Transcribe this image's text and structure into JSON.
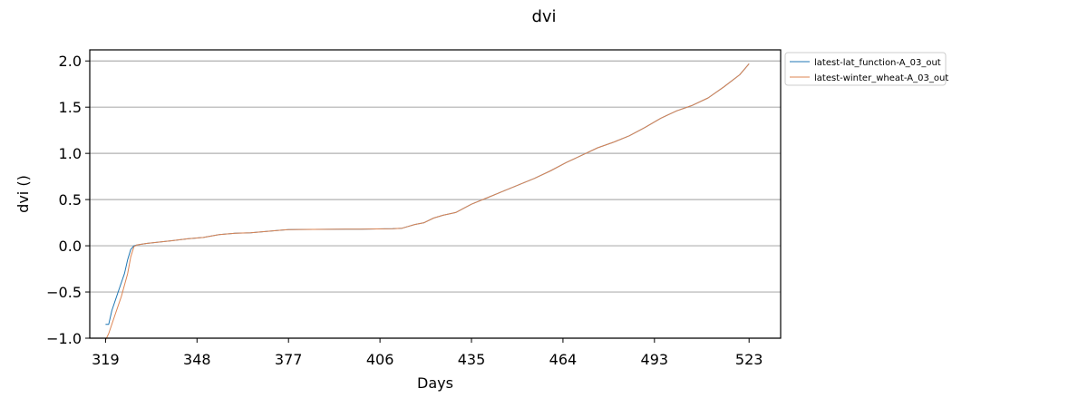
{
  "chart_data": {
    "type": "line",
    "title": "dvi",
    "xlabel": "Days",
    "ylabel": "dvi ()",
    "xlim": [
      314,
      533
    ],
    "ylim": [
      -1.0,
      2.12
    ],
    "xticks": [
      319,
      348,
      377,
      406,
      435,
      464,
      493,
      523
    ],
    "yticks": [
      -1.0,
      -0.5,
      0.0,
      0.5,
      1.0,
      1.5,
      2.0
    ],
    "ytick_labels": [
      "−1.0",
      "−0.5",
      "0.0",
      "0.5",
      "1.0",
      "1.5",
      "2.0"
    ],
    "grid": "horizontal",
    "legend_position": "outside-top-right",
    "series": [
      {
        "name": "latest-lat_function-A_03_out",
        "color": "#1f77b4",
        "x": [
          319,
          320,
          321,
          323,
          325,
          326,
          327,
          328,
          329,
          332,
          336,
          340,
          345,
          350,
          355,
          360,
          365,
          370,
          375,
          377,
          380,
          390,
          400,
          410,
          413,
          415,
          417,
          420,
          423,
          426,
          430,
          435,
          440,
          445,
          450,
          455,
          460,
          465,
          470,
          475,
          480,
          485,
          490,
          495,
          500,
          505,
          510,
          515,
          520,
          523
        ],
        "y": [
          -0.85,
          -0.85,
          -0.7,
          -0.5,
          -0.3,
          -0.15,
          -0.04,
          0.0,
          0.01,
          0.025,
          0.04,
          0.055,
          0.075,
          0.09,
          0.12,
          0.135,
          0.14,
          0.155,
          0.17,
          0.175,
          0.176,
          0.178,
          0.18,
          0.185,
          0.19,
          0.21,
          0.23,
          0.25,
          0.3,
          0.33,
          0.36,
          0.45,
          0.52,
          0.59,
          0.66,
          0.73,
          0.81,
          0.9,
          0.98,
          1.06,
          1.12,
          1.19,
          1.28,
          1.38,
          1.46,
          1.52,
          1.6,
          1.72,
          1.85,
          1.97
        ]
      },
      {
        "name": "latest-winter_wheat-A_03_out",
        "color": "#dd8452",
        "x": [
          319,
          320,
          322,
          324,
          326,
          327,
          328,
          329,
          332,
          336,
          340,
          345,
          350,
          355,
          360,
          365,
          370,
          375,
          377,
          380,
          390,
          400,
          410,
          413,
          415,
          417,
          420,
          423,
          426,
          430,
          435,
          440,
          445,
          450,
          455,
          460,
          465,
          470,
          475,
          480,
          485,
          490,
          495,
          500,
          505,
          510,
          515,
          520,
          523
        ],
        "y": [
          -1.02,
          -0.95,
          -0.75,
          -0.55,
          -0.3,
          -0.12,
          -0.01,
          0.01,
          0.025,
          0.04,
          0.055,
          0.075,
          0.09,
          0.12,
          0.135,
          0.14,
          0.155,
          0.17,
          0.175,
          0.176,
          0.178,
          0.18,
          0.185,
          0.19,
          0.21,
          0.23,
          0.25,
          0.3,
          0.33,
          0.36,
          0.45,
          0.52,
          0.59,
          0.66,
          0.73,
          0.81,
          0.9,
          0.98,
          1.06,
          1.12,
          1.19,
          1.28,
          1.38,
          1.46,
          1.52,
          1.6,
          1.72,
          1.85,
          1.97
        ]
      }
    ]
  }
}
